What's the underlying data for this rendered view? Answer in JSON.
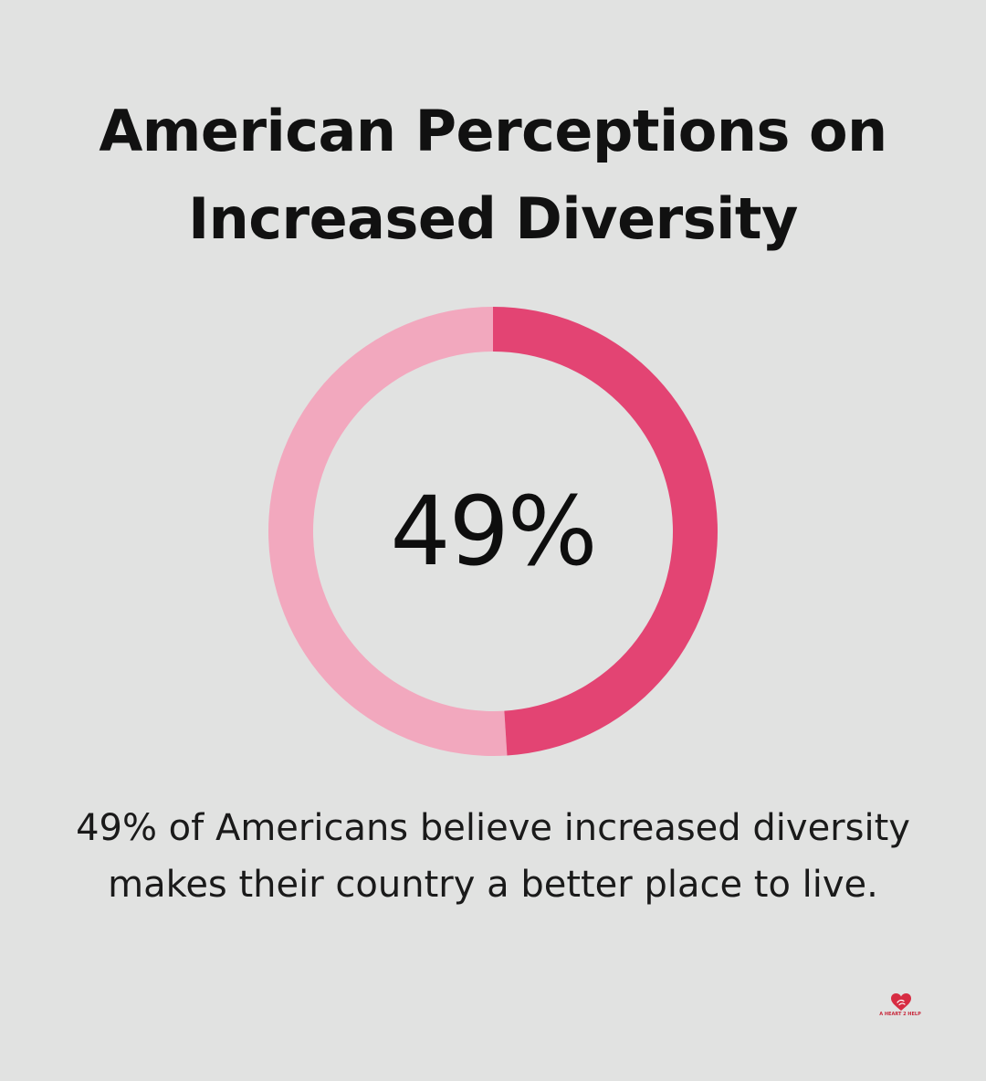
{
  "title_lines": [
    "American Perceptions on",
    "Increased Diversity"
  ],
  "chart_data": {
    "type": "pie",
    "value_percent": 49,
    "remainder_percent": 51,
    "center_label": "49%",
    "colors": {
      "value": "#e34473",
      "remainder": "#f2a8be"
    }
  },
  "description_lines": [
    "49% of Americans believe increased diversity",
    "makes their country a better place to live."
  ],
  "logo": {
    "text": "A HEART 2 HELP",
    "icon": "heart-hands-icon",
    "color": "#d72c42"
  }
}
